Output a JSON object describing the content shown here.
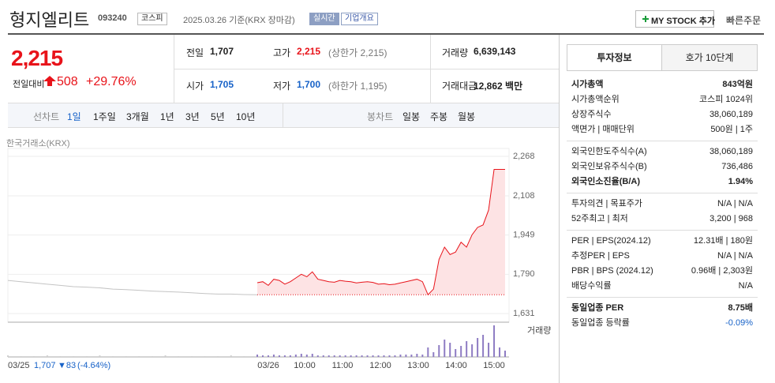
{
  "header": {
    "title": "형지엘리트",
    "code": "093240",
    "market": "코스피",
    "date": "2025.03.26 기준(KRX 장마감)",
    "realtime": "실시간",
    "company": "기업개요",
    "mystock": "MY STOCK 추가",
    "quick_order": "빠른주문"
  },
  "summary": {
    "price": "2,215",
    "change_label": "전일대비",
    "change": "508",
    "rate": "+29.76%",
    "stats": [
      {
        "label": "전일",
        "value": "1,707",
        "color": "#222"
      },
      {
        "label": "고가",
        "value": "2,215",
        "note": "(상한가 2,215)",
        "color": "#e8131a"
      },
      {
        "label": "거래량",
        "value": "6,639,143",
        "color": "#222"
      },
      {
        "label": "시가",
        "value": "1,705",
        "color": "#1762c8"
      },
      {
        "label": "저가",
        "value": "1,700",
        "note": "(하한가 1,195)",
        "color": "#1762c8"
      },
      {
        "label": "거래대금",
        "value": "12,862 백만",
        "color": "#222"
      }
    ]
  },
  "tabs": {
    "line_label": "선차트",
    "line": [
      "1일",
      "1주일",
      "3개월",
      "1년",
      "3년",
      "5년",
      "10년"
    ],
    "candle_label": "봉차트",
    "candle": [
      "일봉",
      "주봉",
      "월봉"
    ]
  },
  "chart": {
    "type": "line",
    "source": "한국거래소(KRX)",
    "volume_label": "거래량",
    "ylim": [
      1631,
      2268
    ],
    "yticks": [
      {
        "value": 2268,
        "label": "2,268"
      },
      {
        "value": 2108,
        "label": "2,108"
      },
      {
        "value": 1949,
        "label": "1,949"
      },
      {
        "value": 1790,
        "label": "1,790"
      },
      {
        "value": 1631,
        "label": "1,631"
      }
    ],
    "baseline": 1707,
    "series": [
      {
        "color": "#c4c4c4",
        "values": [
          1765,
          1760,
          1755,
          1750,
          1745,
          1740,
          1738,
          1735,
          1730,
          1728,
          1725,
          1722,
          1720,
          1718,
          1715,
          1712,
          1710,
          1710,
          1708,
          1707
        ]
      },
      {
        "color": "#e8131a",
        "values": [
          1756,
          1760,
          1745,
          1770,
          1765,
          1750,
          1760,
          1775,
          1790,
          1780,
          1800,
          1770,
          1765,
          1760,
          1758,
          1765,
          1762,
          1760,
          1755,
          1758,
          1760,
          1757,
          1750,
          1752,
          1748,
          1750,
          1755,
          1760,
          1765,
          1770,
          1760,
          1707,
          1730,
          1850,
          1900,
          1870,
          1880,
          1920,
          1900,
          1950,
          1980,
          1990,
          2050,
          2215,
          2215,
          2215
        ]
      }
    ],
    "volume": {
      "color": "#8e7cc3",
      "values": [
        2,
        1,
        1,
        2,
        1,
        1,
        1,
        2,
        1,
        1,
        1,
        1,
        2,
        1,
        1,
        1,
        1,
        2,
        1,
        3,
        3,
        2,
        2,
        3,
        2,
        2,
        2,
        3,
        4,
        3,
        4,
        2,
        2,
        2,
        2,
        2,
        2,
        2,
        2,
        2,
        2,
        2,
        2,
        2,
        2,
        2,
        3,
        3,
        3,
        4,
        3,
        12,
        6,
        15,
        22,
        18,
        10,
        14,
        20,
        16,
        24,
        28,
        18,
        40,
        12,
        8
      ]
    },
    "xticks": [
      "03/26",
      "10:00",
      "11:00",
      "12:00",
      "13:00",
      "14:00",
      "15:00"
    ],
    "footer": {
      "date": "03/25",
      "close": "1,707",
      "change": "▼83",
      "rate": "(-4.64%)"
    }
  },
  "side": {
    "tabs": [
      "투자정보",
      "호가 10단계"
    ],
    "sections": [
      [
        {
          "label": "시가총액",
          "value": "843억원",
          "bold": true
        },
        {
          "label": "시가총액순위",
          "value": "코스피 1024위"
        },
        {
          "label": "상장주식수",
          "value": "38,060,189"
        },
        {
          "label": "액면가 | 매매단위",
          "value": "500원 | 1주"
        }
      ],
      [
        {
          "label": "외국인한도주식수(A)",
          "value": "38,060,189"
        },
        {
          "label": "외국인보유주식수(B)",
          "value": "736,486"
        },
        {
          "label": "외국인소진율(B/A)",
          "value": "1.94%",
          "bold": true
        }
      ],
      [
        {
          "label": "투자의견 | 목표주가",
          "value": "N/A | N/A"
        },
        {
          "label": "52주최고 | 최저",
          "value": "3,200 | 968"
        }
      ],
      [
        {
          "label": "PER | EPS(2024.12)",
          "value": "12.31배 | 180원"
        },
        {
          "label": "추정PER | EPS",
          "value": "N/A | N/A"
        },
        {
          "label": "PBR | BPS (2024.12)",
          "value": "0.96배 | 2,303원"
        },
        {
          "label": "배당수익률",
          "value": "N/A"
        }
      ],
      [
        {
          "label": "동일업종 PER",
          "value": "8.75배",
          "bold": true
        },
        {
          "label": "동일업종 등락률",
          "value": "-0.09%",
          "color": "#1762c8"
        }
      ]
    ]
  }
}
